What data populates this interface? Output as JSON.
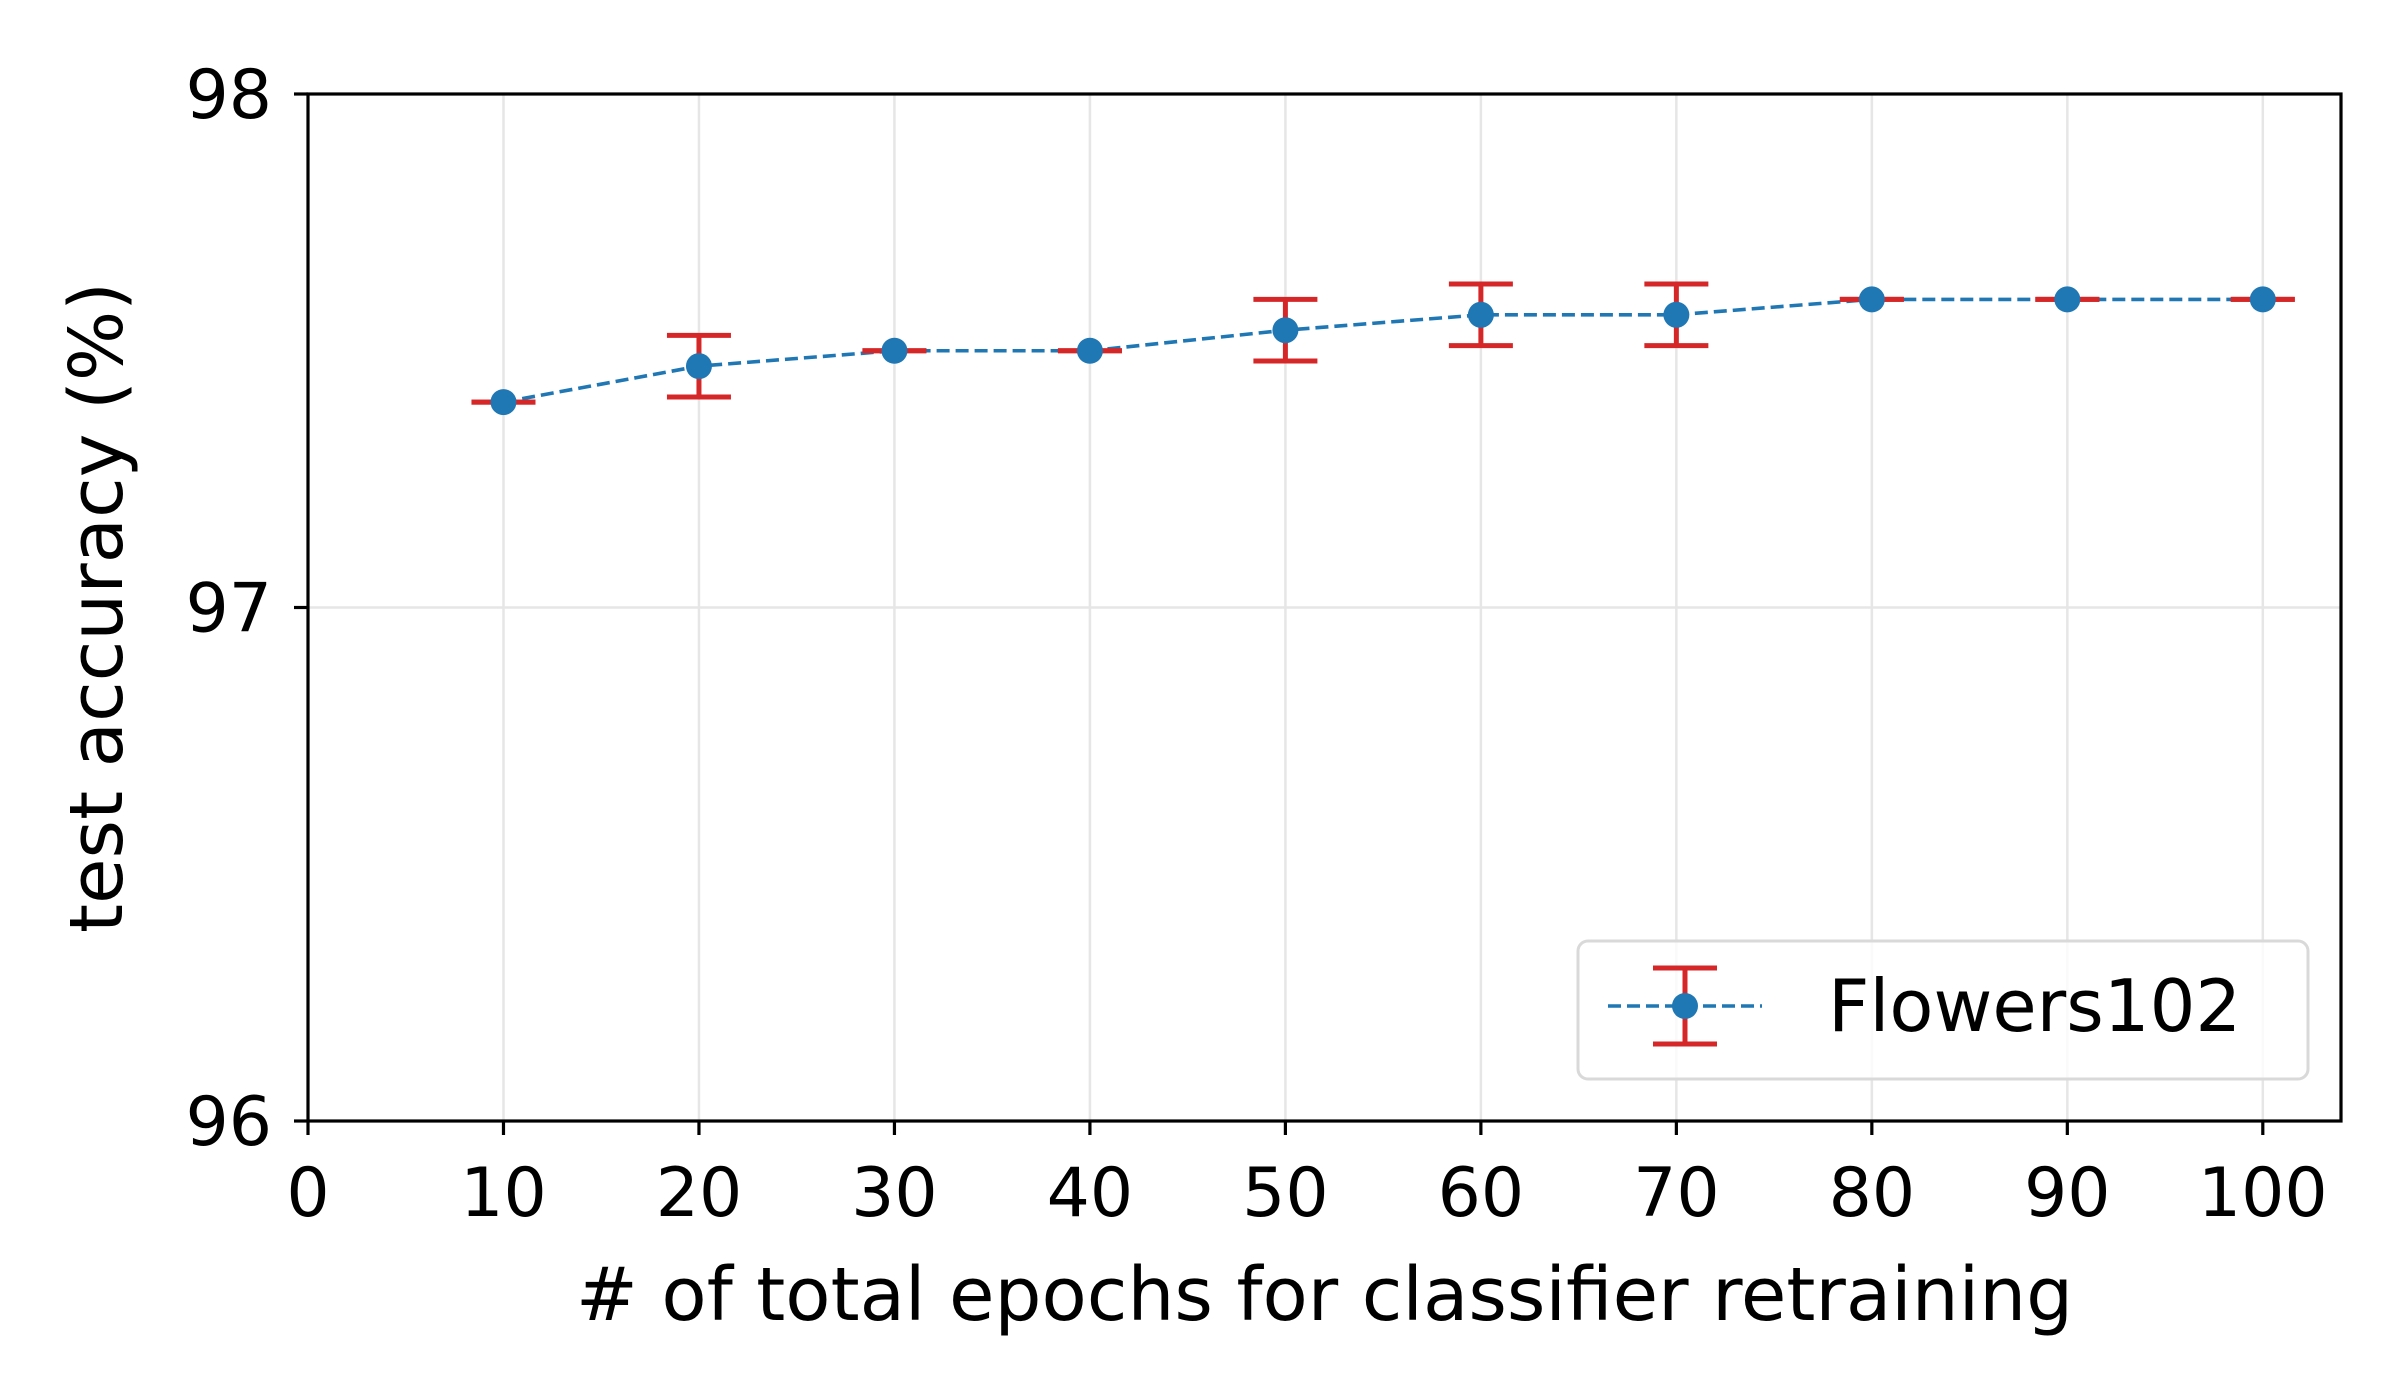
{
  "chart_data": {
    "type": "line",
    "xlabel": "# of total epochs for classifier retraining",
    "ylabel": "test accuracy (%)",
    "xlim": [
      0,
      104
    ],
    "ylim": [
      96,
      98
    ],
    "xticks": [
      0,
      10,
      20,
      30,
      40,
      50,
      60,
      70,
      80,
      90,
      100
    ],
    "yticks": [
      96,
      97,
      98
    ],
    "grid": true,
    "legend_position": "lower-right",
    "series": [
      {
        "name": "Flowers102",
        "x": [
          10,
          20,
          30,
          40,
          50,
          60,
          70,
          80,
          90,
          100
        ],
        "y": [
          97.4,
          97.47,
          97.5,
          97.5,
          97.54,
          97.57,
          97.57,
          97.6,
          97.6,
          97.6
        ],
        "error": [
          0.0,
          0.06,
          0.0,
          0.0,
          0.06,
          0.06,
          0.06,
          0.0,
          0.0,
          0.0
        ],
        "line_color": "#1f77b4",
        "marker_color": "#1f77b4",
        "errorbar_color": "#d62728",
        "line_style": "dashed",
        "marker": "circle"
      }
    ]
  }
}
